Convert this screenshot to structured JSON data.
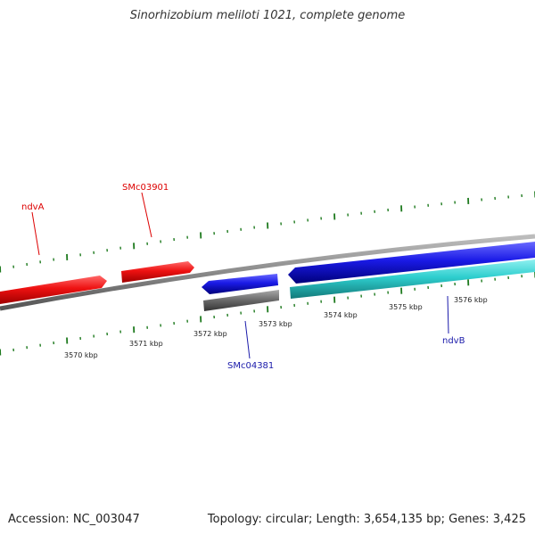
{
  "title": "Sinorhizobium meliloti 1021, complete genome",
  "accession_text": "Accession: NC_003047",
  "summary_text": "Topology: circular; Length: 3,654,135 bp; Genes: 3,425",
  "colors": {
    "backbone": "#888888",
    "forward_gene": "#ee1111",
    "reverse_gene": "#1a1ae6",
    "rna_gene": "#2ecece",
    "pseudo_gene": "#6e6e6e",
    "tick": "#1e7a1e",
    "forward_label": "#dd0000",
    "reverse_label": "#1a1aaa"
  },
  "scale_labels": [
    "3570 kbp",
    "3571 kbp",
    "3572 kbp",
    "3573 kbp",
    "3574 kbp",
    "3575 kbp",
    "3576 kbp"
  ],
  "gene_labels": [
    {
      "name": "ndvA",
      "strand": "forward"
    },
    {
      "name": "SMc03901",
      "strand": "forward"
    },
    {
      "name": "SMc04381",
      "strand": "reverse"
    },
    {
      "name": "ndvB",
      "strand": "reverse"
    }
  ]
}
